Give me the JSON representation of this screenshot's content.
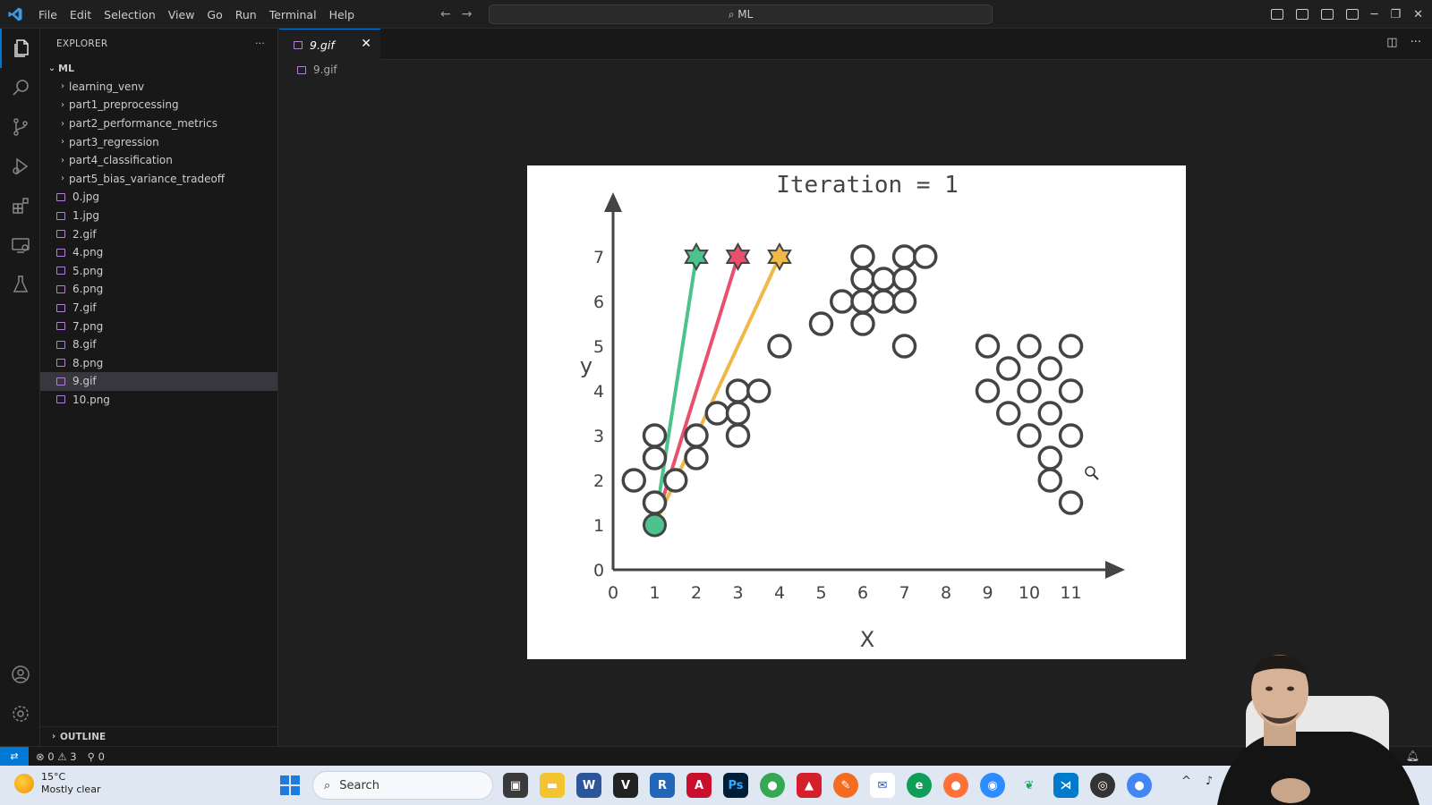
{
  "titlebar": {
    "menu": [
      "File",
      "Edit",
      "Selection",
      "View",
      "Go",
      "Run",
      "Terminal",
      "Help"
    ],
    "search": "ML"
  },
  "explorer": {
    "header": "EXPLORER",
    "root": "ML",
    "folders": [
      "learning_venv",
      "part1_preprocessing",
      "part2_performance_metrics",
      "part3_regression",
      "part4_classification",
      "part5_bias_variance_tradeoff"
    ],
    "files": [
      "0.jpg",
      "1.jpg",
      "2.gif",
      "4.png",
      "5.png",
      "6.png",
      "7.gif",
      "7.png",
      "8.gif",
      "8.png",
      "9.gif",
      "10.png"
    ],
    "selected": "9.gif",
    "outline": "OUTLINE"
  },
  "editor": {
    "tab": "9.gif",
    "breadcrumb": "9.gif"
  },
  "status": {
    "errors": "0",
    "warnings": "3",
    "ports": "0"
  },
  "taskbar": {
    "temp": "15°C",
    "weather": "Mostly clear",
    "search": "Search"
  },
  "chart_data": {
    "type": "scatter",
    "title": "Iteration = 1",
    "xlabel": "X",
    "ylabel": "y",
    "xlim": [
      0,
      11
    ],
    "ylim": [
      0,
      7
    ],
    "xticks": [
      "0",
      "1",
      "2",
      "3",
      "4",
      "5",
      "6",
      "7",
      "8",
      "9",
      "10",
      "11"
    ],
    "yticks": [
      "0",
      "1",
      "2",
      "3",
      "4",
      "5",
      "6",
      "7"
    ],
    "points": [
      [
        0.5,
        2
      ],
      [
        1,
        1.5
      ],
      [
        1,
        2.5
      ],
      [
        1,
        3
      ],
      [
        1.5,
        2
      ],
      [
        2,
        2.5
      ],
      [
        2,
        3
      ],
      [
        2.5,
        3.5
      ],
      [
        3,
        3
      ],
      [
        3,
        3.5
      ],
      [
        3,
        4
      ],
      [
        3.5,
        4
      ],
      [
        4,
        5
      ],
      [
        5,
        5.5
      ],
      [
        5.5,
        6
      ],
      [
        6,
        5.5
      ],
      [
        6,
        6
      ],
      [
        6,
        6.5
      ],
      [
        6,
        7
      ],
      [
        6.5,
        6
      ],
      [
        6.5,
        6.5
      ],
      [
        7,
        6
      ],
      [
        7,
        6.5
      ],
      [
        7,
        7
      ],
      [
        7.5,
        7
      ],
      [
        7,
        5
      ],
      [
        9,
        4
      ],
      [
        9,
        5
      ],
      [
        9.5,
        4.5
      ],
      [
        9.5,
        3.5
      ],
      [
        10,
        5
      ],
      [
        10,
        4
      ],
      [
        10,
        3
      ],
      [
        10.5,
        4.5
      ],
      [
        10.5,
        3.5
      ],
      [
        10.5,
        2.5
      ],
      [
        10.5,
        2
      ],
      [
        11,
        5
      ],
      [
        11,
        4
      ],
      [
        11,
        3
      ],
      [
        11,
        1.5
      ]
    ],
    "highlight": {
      "x": 1,
      "y": 1,
      "color": "#4cc38a"
    },
    "centroids": [
      {
        "x": 2,
        "y": 7,
        "color": "#4cc38a"
      },
      {
        "x": 3,
        "y": 7,
        "color": "#e8506e"
      },
      {
        "x": 4,
        "y": 7,
        "color": "#f0b848"
      }
    ]
  }
}
